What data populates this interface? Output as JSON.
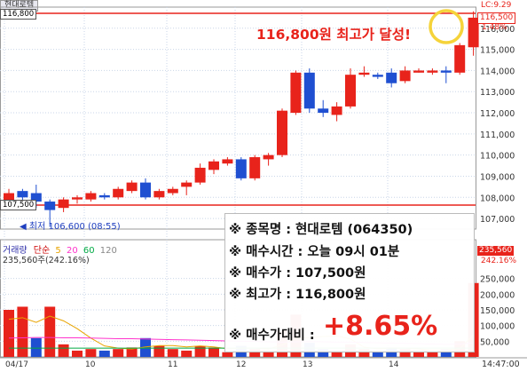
{
  "stock_name_tag": "현대로템",
  "high_line_label": "116,800",
  "buy_line_label": "107,500",
  "lc_label": "LC:9.29",
  "current_price_tag": "116,500",
  "current_pct_tag": "1.48%",
  "annotation_text": "116,800원 최고가 달성!",
  "low_marker_text": "최저 106,600 (08:55)",
  "volume_legend": {
    "title": "거래량",
    "sub": "단순",
    "ma": [
      "5",
      "20",
      "60",
      "120"
    ],
    "colors": [
      "#e8a400",
      "#ff33cc",
      "#00aa44",
      "#999999"
    ]
  },
  "volume_value": "235,560주(242.16%)",
  "volume_tag_1": "235,560",
  "volume_tag_2": "242.16%",
  "time_label": "14:47:00",
  "info_box": {
    "line1": "※ 종목명 : 현대로템 (064350)",
    "line2": "※ 매수시간 : 오늘 09시 01분",
    "line3": "※ 매수가 : 107,500원",
    "line4": "※ 최고가 : 116,800원",
    "line5_label": "※ 매수가대비 :",
    "line5_value": "+8.65%"
  },
  "colors": {
    "up": "#e8231b",
    "down": "#1f4fd1",
    "high_line": "#e8231b",
    "annotation": "#e8231b",
    "circle": "#f5d33a"
  },
  "chart_data": [
    {
      "type": "candlestick",
      "title": "현대로템",
      "ylim": [
        106500,
        117000
      ],
      "y_ticks": [
        107000,
        108000,
        109000,
        110000,
        111000,
        112000,
        113000,
        114000,
        115000,
        116000
      ],
      "y_tick_labels": [
        "107,000",
        "108,000",
        "109,000",
        "110,000",
        "111,000",
        "112,000",
        "113,000",
        "114,000",
        "115,000",
        "116,000"
      ],
      "x_labels": [
        "04/17",
        "10",
        "11",
        "12",
        "13",
        "14"
      ],
      "candles": [
        {
          "o": 107600,
          "c": 108200,
          "h": 108400,
          "l": 107400
        },
        {
          "o": 108300,
          "c": 108000,
          "h": 108400,
          "l": 107700
        },
        {
          "o": 108200,
          "c": 107800,
          "h": 108600,
          "l": 107500
        },
        {
          "o": 107800,
          "c": 107400,
          "h": 107900,
          "l": 106600
        },
        {
          "o": 107500,
          "c": 107900,
          "h": 108000,
          "l": 107300
        },
        {
          "o": 107900,
          "c": 108000,
          "h": 108100,
          "l": 107700
        },
        {
          "o": 107900,
          "c": 108200,
          "h": 108300,
          "l": 107800
        },
        {
          "o": 108100,
          "c": 108000,
          "h": 108200,
          "l": 107900
        },
        {
          "o": 108000,
          "c": 108400,
          "h": 108500,
          "l": 107900
        },
        {
          "o": 108300,
          "c": 108700,
          "h": 108800,
          "l": 108200
        },
        {
          "o": 108700,
          "c": 108000,
          "h": 108900,
          "l": 107900
        },
        {
          "o": 108000,
          "c": 108300,
          "h": 108400,
          "l": 107900
        },
        {
          "o": 108200,
          "c": 108400,
          "h": 108500,
          "l": 108100
        },
        {
          "o": 108500,
          "c": 108700,
          "h": 108800,
          "l": 108100
        },
        {
          "o": 108700,
          "c": 109400,
          "h": 109600,
          "l": 108600
        },
        {
          "o": 109300,
          "c": 109700,
          "h": 109800,
          "l": 109100
        },
        {
          "o": 109600,
          "c": 109800,
          "h": 109900,
          "l": 109500
        },
        {
          "o": 109800,
          "c": 108900,
          "h": 109900,
          "l": 108800
        },
        {
          "o": 108900,
          "c": 109900,
          "h": 110000,
          "l": 108800
        },
        {
          "o": 109800,
          "c": 110000,
          "h": 110100,
          "l": 109500
        },
        {
          "o": 110000,
          "c": 112100,
          "h": 112200,
          "l": 109900
        },
        {
          "o": 112000,
          "c": 113900,
          "h": 114000,
          "l": 111900
        },
        {
          "o": 113900,
          "c": 112200,
          "h": 114100,
          "l": 112000
        },
        {
          "o": 112200,
          "c": 112000,
          "h": 112600,
          "l": 111800
        },
        {
          "o": 111900,
          "c": 112300,
          "h": 112500,
          "l": 111600
        },
        {
          "o": 112300,
          "c": 113800,
          "h": 114100,
          "l": 112200
        },
        {
          "o": 113800,
          "c": 113900,
          "h": 114200,
          "l": 113700
        },
        {
          "o": 113800,
          "c": 113700,
          "h": 113900,
          "l": 113600
        },
        {
          "o": 113900,
          "c": 113400,
          "h": 114100,
          "l": 113200
        },
        {
          "o": 113500,
          "c": 114000,
          "h": 114200,
          "l": 113400
        },
        {
          "o": 113900,
          "c": 114000,
          "h": 114100,
          "l": 113900
        },
        {
          "o": 113900,
          "c": 114000,
          "h": 114100,
          "l": 113800
        },
        {
          "o": 114000,
          "c": 113900,
          "h": 114200,
          "l": 113400
        },
        {
          "o": 113900,
          "c": 115200,
          "h": 115300,
          "l": 113800
        },
        {
          "o": 115100,
          "c": 116500,
          "h": 116800,
          "l": 114700
        }
      ]
    },
    {
      "type": "bar",
      "title": "거래량",
      "ylim": [
        0,
        300000
      ],
      "y_ticks": [
        50000,
        100000,
        150000,
        200000,
        250000
      ],
      "y_tick_labels": [
        "50,000",
        "100,000",
        "150,000",
        "200,000",
        "250,000"
      ],
      "values": [
        150000,
        160000,
        60000,
        160000,
        40000,
        20000,
        25000,
        20000,
        25000,
        30000,
        60000,
        35000,
        25000,
        20000,
        35000,
        30000,
        15000,
        35000,
        25000,
        20000,
        85000,
        135000,
        45000,
        25000,
        20000,
        40000,
        25000,
        20000,
        30000,
        25000,
        15000,
        15000,
        25000,
        50000,
        235560
      ],
      "colors": [
        "up",
        "up",
        "down",
        "up",
        "up",
        "up",
        "up",
        "down",
        "up",
        "up",
        "down",
        "up",
        "up",
        "up",
        "up",
        "up",
        "up",
        "down",
        "up",
        "up",
        "up",
        "up",
        "down",
        "down",
        "up",
        "up",
        "up",
        "down",
        "down",
        "up",
        "up",
        "up",
        "down",
        "up",
        "up"
      ],
      "ma5": [
        120000,
        125000,
        110000,
        130000,
        115000,
        90000,
        60000,
        35000,
        28000,
        25000,
        32000,
        36000,
        36000,
        32000,
        35000,
        32000,
        26000,
        28000,
        28000,
        25000,
        38000,
        60000,
        62000,
        65000,
        67000,
        57000,
        31000,
        26000,
        28000,
        28000,
        25000,
        22000,
        22000,
        26000,
        70000
      ],
      "ma20": [
        60000,
        61000,
        62000,
        62000,
        61000,
        61000,
        60000,
        59000,
        58000,
        58000,
        57000,
        56000,
        55000,
        54000,
        53000,
        52000,
        51000,
        50000,
        49000,
        48000,
        47000,
        48000,
        49000,
        48000,
        47000,
        47000,
        46000,
        45000,
        44000,
        43000,
        42000,
        41000,
        40000,
        41000,
        45000
      ],
      "ma60": [
        28000,
        28000,
        28000,
        28000,
        28000,
        28000,
        28000,
        28000,
        28000,
        28000,
        28000,
        28000,
        28000,
        28000,
        28000,
        28000,
        28000,
        28000,
        28000,
        28000,
        28000,
        28000,
        28000,
        28000,
        28000,
        28000,
        28000,
        28000,
        28000,
        28000,
        28000,
        28000,
        28000,
        28000,
        28000
      ]
    }
  ]
}
